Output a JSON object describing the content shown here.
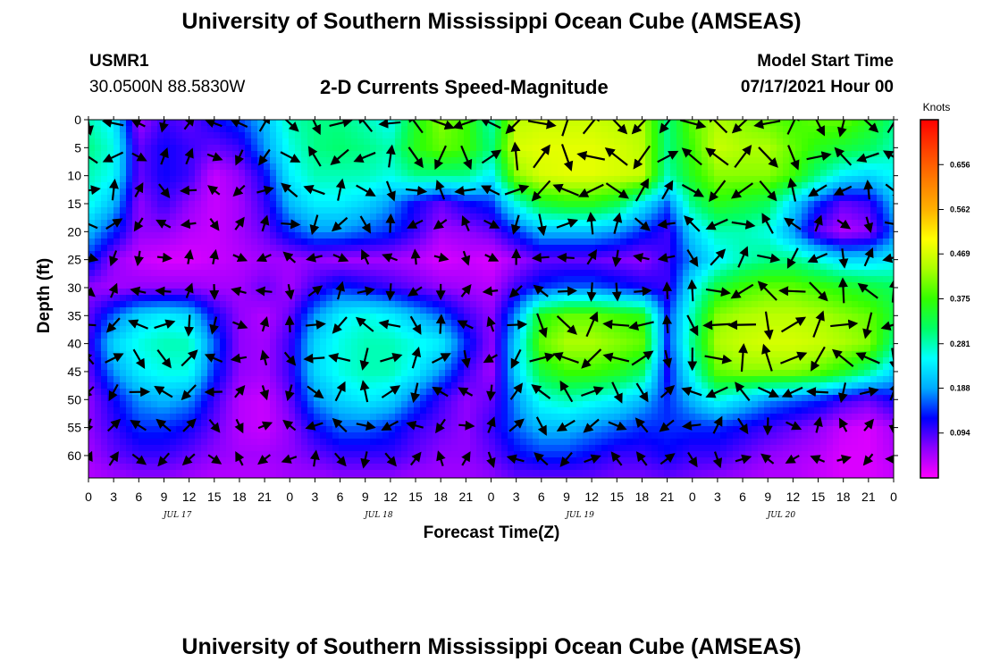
{
  "title_top": "University of Southern Mississippi Ocean Cube (AMSEAS)",
  "title_bottom": "University of Southern Mississippi Ocean Cube (AMSEAS)",
  "station": {
    "id": "USMR1",
    "coords": "30.0500N  88.5830W"
  },
  "model": {
    "label": "Model Start Time",
    "start": "07/17/2021 Hour 00"
  },
  "chart_data": {
    "type": "heatmap",
    "title": "2-D Currents Speed-Magnitude",
    "xlabel": "Forecast Time(Z)",
    "ylabel": "Depth (ft)",
    "x_tick_labels": [
      "0",
      "3",
      "6",
      "9",
      "12",
      "15",
      "18",
      "21",
      "0",
      "3",
      "6",
      "9",
      "12",
      "15",
      "18",
      "21",
      "0",
      "3",
      "6",
      "9",
      "12",
      "15",
      "18",
      "21",
      "0",
      "3",
      "6",
      "9",
      "12",
      "15",
      "18",
      "21",
      "0"
    ],
    "date_labels": [
      {
        "label": "JUL 17",
        "tick_index": 4
      },
      {
        "label": "JUL 18",
        "tick_index": 12
      },
      {
        "label": "JUL 19",
        "tick_index": 20
      },
      {
        "label": "JUL 20",
        "tick_index": 28
      }
    ],
    "y_ticks": [
      0,
      5,
      10,
      15,
      20,
      25,
      30,
      35,
      40,
      45,
      50,
      55,
      60
    ],
    "ylim": [
      0,
      64
    ],
    "y_inverted": true,
    "colorbar": {
      "unit": "Knots",
      "tick_values": [
        0.094,
        0.188,
        0.281,
        0.375,
        0.469,
        0.562,
        0.656
      ],
      "tick_labels": [
        "0.094",
        "0.188",
        "0.281",
        "0.375",
        "0.469",
        "0.562",
        "0.656"
      ],
      "range": [
        0,
        0.75
      ],
      "colors": [
        "#ff00ff",
        "#8c00ff",
        "#0000ff",
        "#00aaff",
        "#00ffff",
        "#00ff66",
        "#33ff00",
        "#aaff00",
        "#ffff00",
        "#ffb000",
        "#ff7a00",
        "#ff4000",
        "#ff0000"
      ]
    },
    "speed_depths": [
      0,
      5,
      10,
      15,
      20,
      25,
      30,
      35,
      40,
      45,
      50,
      55,
      60,
      64
    ],
    "speed_grid": [
      [
        0.28,
        0.24,
        0.05,
        0.1,
        0.08,
        0.12,
        0.15,
        0.2,
        0.28,
        0.3,
        0.3,
        0.28,
        0.25,
        0.35,
        0.42,
        0.38,
        0.28,
        0.45,
        0.46,
        0.46,
        0.46,
        0.45,
        0.44,
        0.3,
        0.4,
        0.44,
        0.42,
        0.4,
        0.38,
        0.4,
        0.4,
        0.36,
        0.3
      ],
      [
        0.3,
        0.26,
        0.08,
        0.12,
        0.1,
        0.08,
        0.1,
        0.18,
        0.26,
        0.3,
        0.31,
        0.3,
        0.28,
        0.36,
        0.4,
        0.38,
        0.3,
        0.47,
        0.48,
        0.48,
        0.48,
        0.47,
        0.45,
        0.3,
        0.38,
        0.46,
        0.44,
        0.44,
        0.4,
        0.36,
        0.34,
        0.32,
        0.28
      ],
      [
        0.28,
        0.25,
        0.08,
        0.12,
        0.1,
        0.03,
        0.06,
        0.12,
        0.24,
        0.28,
        0.28,
        0.28,
        0.26,
        0.3,
        0.3,
        0.3,
        0.24,
        0.42,
        0.47,
        0.48,
        0.48,
        0.47,
        0.46,
        0.28,
        0.36,
        0.42,
        0.42,
        0.42,
        0.38,
        0.3,
        0.24,
        0.22,
        0.25
      ],
      [
        0.26,
        0.2,
        0.06,
        0.1,
        0.06,
        0.03,
        0.05,
        0.1,
        0.2,
        0.24,
        0.24,
        0.22,
        0.18,
        0.12,
        0.08,
        0.12,
        0.14,
        0.26,
        0.34,
        0.36,
        0.36,
        0.33,
        0.24,
        0.16,
        0.3,
        0.36,
        0.34,
        0.32,
        0.22,
        0.14,
        0.08,
        0.1,
        0.2
      ],
      [
        0.2,
        0.14,
        0.06,
        0.06,
        0.04,
        0.03,
        0.05,
        0.08,
        0.14,
        0.18,
        0.18,
        0.16,
        0.14,
        0.1,
        0.05,
        0.06,
        0.08,
        0.14,
        0.2,
        0.2,
        0.2,
        0.18,
        0.14,
        0.1,
        0.22,
        0.28,
        0.28,
        0.26,
        0.18,
        0.08,
        0.04,
        0.06,
        0.16
      ],
      [
        0.14,
        0.06,
        0.03,
        0.02,
        0.02,
        0.03,
        0.04,
        0.05,
        0.05,
        0.06,
        0.05,
        0.05,
        0.05,
        0.04,
        0.02,
        0.03,
        0.02,
        0.05,
        0.08,
        0.08,
        0.08,
        0.07,
        0.06,
        0.1,
        0.18,
        0.24,
        0.28,
        0.3,
        0.3,
        0.26,
        0.22,
        0.22,
        0.24
      ],
      [
        0.06,
        0.05,
        0.06,
        0.06,
        0.06,
        0.05,
        0.05,
        0.08,
        0.05,
        0.1,
        0.14,
        0.12,
        0.1,
        0.08,
        0.06,
        0.05,
        0.04,
        0.1,
        0.14,
        0.16,
        0.16,
        0.14,
        0.12,
        0.1,
        0.24,
        0.34,
        0.38,
        0.4,
        0.4,
        0.38,
        0.36,
        0.34,
        0.32
      ],
      [
        0.08,
        0.16,
        0.22,
        0.24,
        0.22,
        0.12,
        0.06,
        0.04,
        0.08,
        0.18,
        0.24,
        0.26,
        0.24,
        0.2,
        0.16,
        0.1,
        0.06,
        0.18,
        0.36,
        0.4,
        0.4,
        0.38,
        0.36,
        0.14,
        0.28,
        0.42,
        0.44,
        0.45,
        0.45,
        0.44,
        0.42,
        0.4,
        0.34
      ],
      [
        0.1,
        0.22,
        0.26,
        0.28,
        0.28,
        0.16,
        0.06,
        0.05,
        0.1,
        0.22,
        0.26,
        0.28,
        0.28,
        0.26,
        0.24,
        0.14,
        0.06,
        0.22,
        0.4,
        0.44,
        0.44,
        0.42,
        0.4,
        0.14,
        0.3,
        0.44,
        0.46,
        0.47,
        0.47,
        0.46,
        0.44,
        0.42,
        0.3
      ],
      [
        0.08,
        0.18,
        0.24,
        0.26,
        0.26,
        0.14,
        0.06,
        0.05,
        0.1,
        0.22,
        0.26,
        0.28,
        0.28,
        0.24,
        0.18,
        0.1,
        0.05,
        0.22,
        0.34,
        0.38,
        0.38,
        0.36,
        0.32,
        0.12,
        0.26,
        0.4,
        0.42,
        0.42,
        0.42,
        0.4,
        0.36,
        0.3,
        0.22
      ],
      [
        0.06,
        0.12,
        0.18,
        0.2,
        0.18,
        0.1,
        0.04,
        0.03,
        0.08,
        0.18,
        0.22,
        0.24,
        0.22,
        0.16,
        0.1,
        0.06,
        0.08,
        0.18,
        0.26,
        0.28,
        0.26,
        0.24,
        0.2,
        0.14,
        0.2,
        0.26,
        0.22,
        0.18,
        0.16,
        0.14,
        0.1,
        0.08,
        0.12
      ],
      [
        0.06,
        0.1,
        0.14,
        0.14,
        0.12,
        0.08,
        0.04,
        0.03,
        0.06,
        0.12,
        0.16,
        0.16,
        0.14,
        0.1,
        0.08,
        0.06,
        0.1,
        0.16,
        0.2,
        0.2,
        0.18,
        0.16,
        0.14,
        0.14,
        0.14,
        0.14,
        0.12,
        0.1,
        0.08,
        0.06,
        0.03,
        0.02,
        0.05
      ],
      [
        0.05,
        0.08,
        0.1,
        0.1,
        0.08,
        0.06,
        0.05,
        0.05,
        0.06,
        0.08,
        0.1,
        0.1,
        0.1,
        0.08,
        0.06,
        0.06,
        0.08,
        0.12,
        0.14,
        0.14,
        0.12,
        0.1,
        0.1,
        0.12,
        0.1,
        0.1,
        0.08,
        0.06,
        0.05,
        0.04,
        0.02,
        0.02,
        0.04
      ],
      [
        0.04,
        0.05,
        0.06,
        0.06,
        0.05,
        0.04,
        0.04,
        0.04,
        0.05,
        0.05,
        0.06,
        0.06,
        0.06,
        0.05,
        0.05,
        0.05,
        0.06,
        0.08,
        0.08,
        0.08,
        0.08,
        0.07,
        0.07,
        0.08,
        0.07,
        0.06,
        0.05,
        0.04,
        0.04,
        0.03,
        0.02,
        0.02,
        0.03
      ]
    ]
  }
}
